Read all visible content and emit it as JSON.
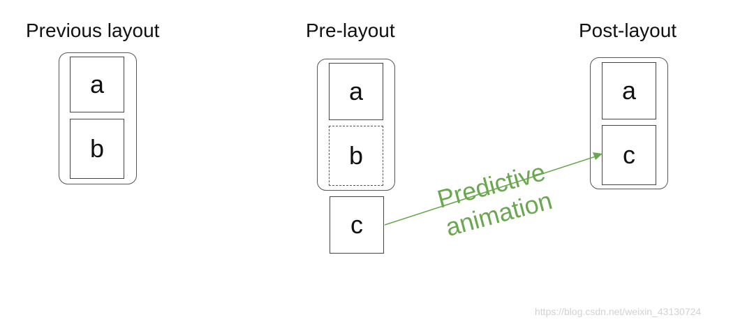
{
  "panels": {
    "previous": {
      "title": "Previous layout",
      "items": [
        "a",
        "b"
      ]
    },
    "pre": {
      "title": "Pre-layout",
      "items": [
        "a",
        "b"
      ],
      "outside_item": "c"
    },
    "post": {
      "title": "Post-layout",
      "items": [
        "a",
        "c"
      ]
    }
  },
  "arrow": {
    "label_line1": "Predictive",
    "label_line2": "animation",
    "color": "#6aa84f"
  },
  "watermark": "https://blog.csdn.net/weixin_43130724"
}
